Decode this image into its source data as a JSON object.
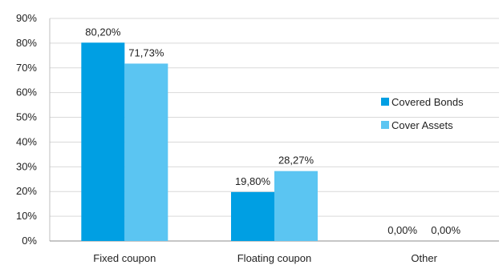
{
  "chart_data": {
    "type": "bar",
    "title": "",
    "xlabel": "",
    "ylabel": "",
    "categories": [
      "Fixed coupon",
      "Floating coupon",
      "Other"
    ],
    "series": [
      {
        "name": "Covered Bonds",
        "color": "#009fe3",
        "values": [
          80.2,
          19.8,
          0.0
        ],
        "labels": [
          "80,20%",
          "19,80%",
          "0,00%"
        ]
      },
      {
        "name": "Cover Assets",
        "color": "#5bc5f2",
        "values": [
          71.73,
          28.27,
          0.0
        ],
        "labels": [
          "71,73%",
          "28,27%",
          "0,00%"
        ]
      }
    ],
    "ylim": [
      0,
      90
    ],
    "yticks": [
      0,
      10,
      20,
      30,
      40,
      50,
      60,
      70,
      80,
      90
    ],
    "ytick_labels": [
      "0%",
      "10%",
      "20%",
      "30%",
      "40%",
      "50%",
      "60%",
      "70%",
      "80%",
      "90%"
    ],
    "grid": true,
    "legend_position": "right"
  }
}
